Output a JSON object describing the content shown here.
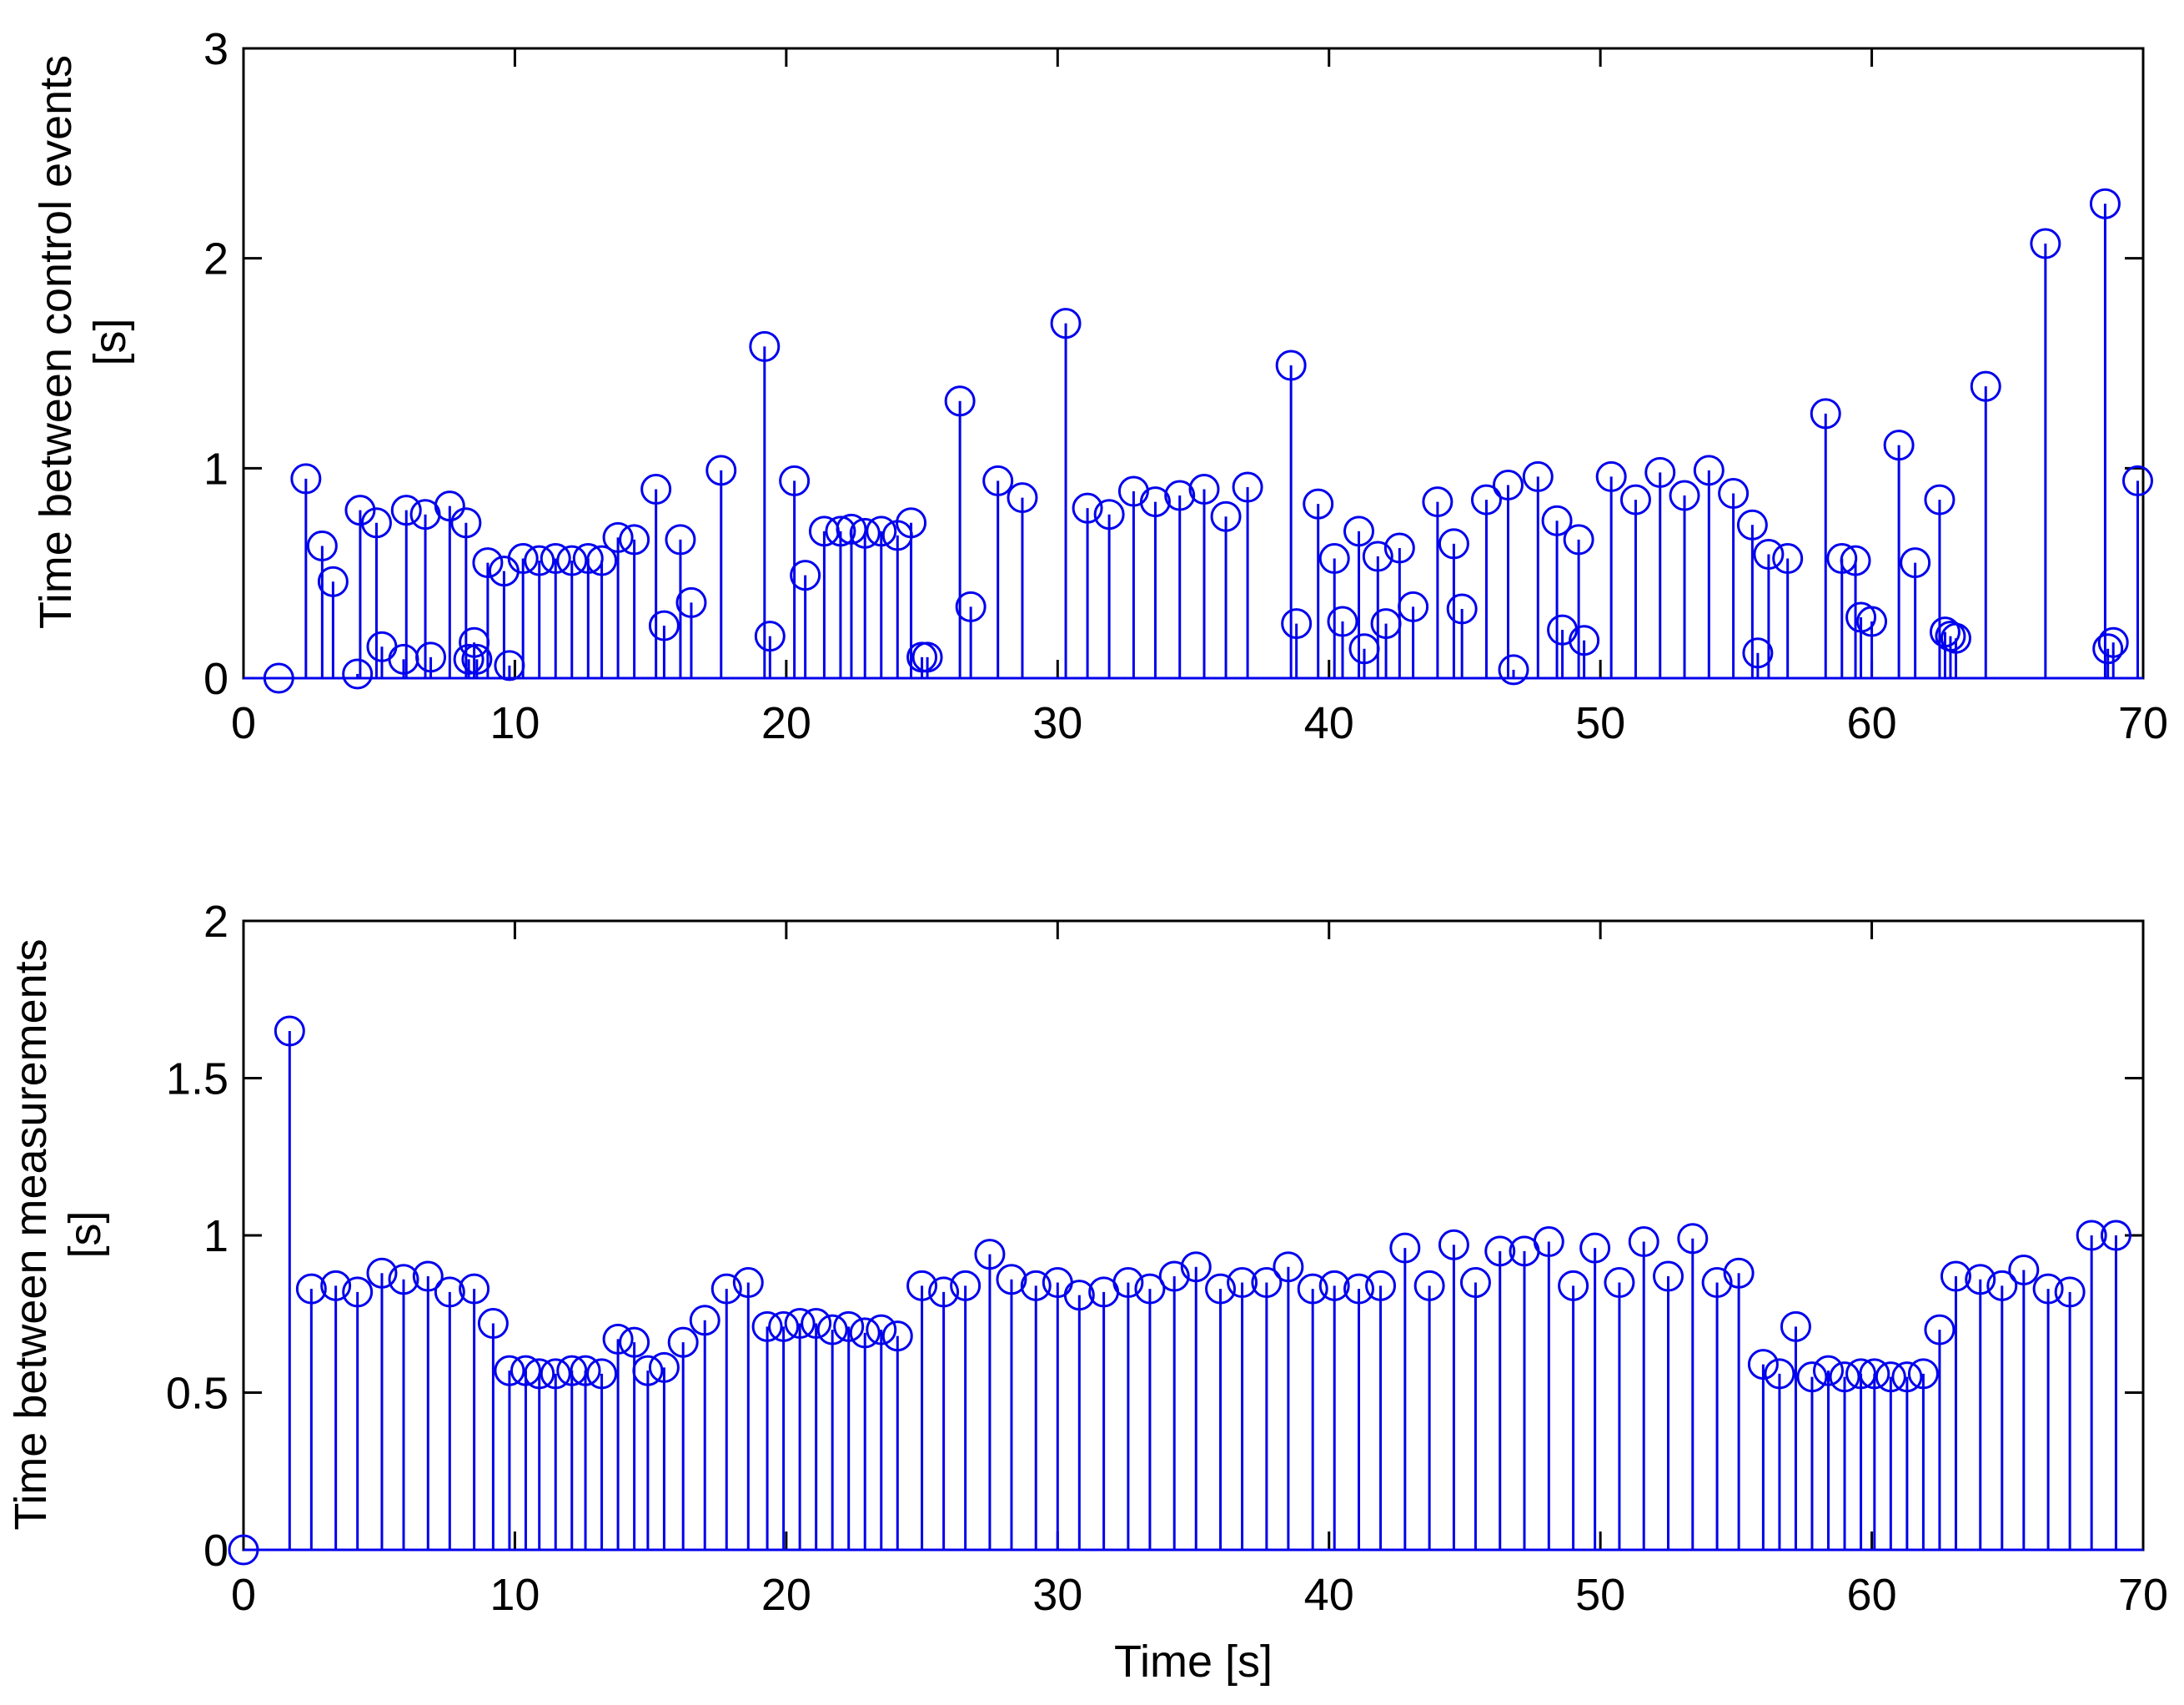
{
  "chart_data": [
    {
      "type": "stem",
      "ylabel_line1": "Time between control events",
      "ylabel_line2": "[s]",
      "xlabel": "",
      "xlim": [
        0,
        70
      ],
      "ylim": [
        0,
        3
      ],
      "xticks": [
        0,
        10,
        20,
        30,
        40,
        50,
        60,
        70
      ],
      "yticks": [
        0,
        1,
        2,
        3
      ],
      "xtick_labels": [
        "0",
        "10",
        "20",
        "30",
        "40",
        "50",
        "60",
        "70"
      ],
      "ytick_labels": [
        "0",
        "1",
        "2",
        "3"
      ],
      "color": "#0000ee",
      "x": [
        1.3,
        2.3,
        2.9,
        3.3,
        4.2,
        4.3,
        4.9,
        5.1,
        5.9,
        6.0,
        6.7,
        6.9,
        7.6,
        8.2,
        8.3,
        8.5,
        8.6,
        9.0,
        9.6,
        9.8,
        10.3,
        10.9,
        11.5,
        12.1,
        12.7,
        13.2,
        13.8,
        14.4,
        15.2,
        15.5,
        16.1,
        16.5,
        17.6,
        19.2,
        19.4,
        20.3,
        20.7,
        21.4,
        22.0,
        22.4,
        22.9,
        23.5,
        24.1,
        24.6,
        25.0,
        25.2,
        26.4,
        26.8,
        27.8,
        28.7,
        30.3,
        31.1,
        31.9,
        32.8,
        33.6,
        34.5,
        35.4,
        36.2,
        37.0,
        38.6,
        38.8,
        39.6,
        40.2,
        40.5,
        41.1,
        41.3,
        41.8,
        42.1,
        42.6,
        43.1,
        44.0,
        44.6,
        44.9,
        45.8,
        46.6,
        46.8,
        47.7,
        48.4,
        48.6,
        49.2,
        49.4,
        50.4,
        51.3,
        52.2,
        53.1,
        54.0,
        54.9,
        55.6,
        55.8,
        56.2,
        56.9,
        58.3,
        58.9,
        59.4,
        59.6,
        60.0,
        61.0,
        61.6,
        62.5,
        62.7,
        62.9,
        63.1,
        64.2,
        66.4,
        68.6,
        68.7,
        68.9,
        69.8
      ],
      "values": [
        0.0,
        0.95,
        0.63,
        0.46,
        0.02,
        0.8,
        0.74,
        0.15,
        0.09,
        0.8,
        0.78,
        0.1,
        0.82,
        0.74,
        0.09,
        0.17,
        0.09,
        0.55,
        0.51,
        0.06,
        0.57,
        0.56,
        0.57,
        0.56,
        0.57,
        0.56,
        0.67,
        0.66,
        0.9,
        0.25,
        0.66,
        0.36,
        0.99,
        1.58,
        0.2,
        0.94,
        0.49,
        0.7,
        0.7,
        0.71,
        0.69,
        0.7,
        0.68,
        0.74,
        0.1,
        0.1,
        1.32,
        0.34,
        0.94,
        0.86,
        1.69,
        0.81,
        0.78,
        0.89,
        0.84,
        0.87,
        0.9,
        0.77,
        0.91,
        1.49,
        0.26,
        0.83,
        0.57,
        0.27,
        0.7,
        0.14,
        0.58,
        0.26,
        0.62,
        0.34,
        0.84,
        0.64,
        0.33,
        0.85,
        0.92,
        0.04,
        0.96,
        0.75,
        0.23,
        0.66,
        0.18,
        0.96,
        0.85,
        0.98,
        0.87,
        0.99,
        0.88,
        0.73,
        0.12,
        0.59,
        0.57,
        1.26,
        0.57,
        0.56,
        0.29,
        0.27,
        1.11,
        0.55,
        0.85,
        0.22,
        0.2,
        0.19,
        1.39,
        2.07,
        2.26,
        0.14,
        0.17,
        0.94
      ]
    },
    {
      "type": "stem",
      "ylabel_line1": "Time between measurements",
      "ylabel_line2": "[s]",
      "xlabel": "Time [s]",
      "xlim": [
        0,
        70
      ],
      "ylim": [
        0,
        2
      ],
      "xticks": [
        0,
        10,
        20,
        30,
        40,
        50,
        60,
        70
      ],
      "yticks": [
        0,
        0.5,
        1,
        1.5,
        2
      ],
      "xtick_labels": [
        "0",
        "10",
        "20",
        "30",
        "40",
        "50",
        "60",
        "70"
      ],
      "ytick_labels": [
        "0",
        "0.5",
        "1",
        "1.5",
        "2"
      ],
      "color": "#0000ee",
      "x": [
        0.0,
        1.7,
        2.5,
        3.4,
        4.2,
        5.1,
        5.9,
        6.8,
        7.6,
        8.5,
        9.2,
        9.8,
        10.4,
        10.9,
        11.5,
        12.1,
        12.6,
        13.2,
        13.8,
        14.4,
        14.9,
        15.5,
        16.2,
        17.0,
        17.8,
        18.6,
        19.3,
        19.9,
        20.5,
        21.1,
        21.7,
        22.3,
        22.9,
        23.5,
        24.1,
        25.0,
        25.8,
        26.6,
        27.5,
        28.3,
        29.2,
        30.0,
        30.8,
        31.7,
        32.6,
        33.4,
        34.3,
        35.1,
        36.0,
        36.8,
        37.7,
        38.5,
        39.4,
        40.2,
        41.1,
        41.9,
        42.8,
        43.7,
        44.6,
        45.4,
        46.3,
        47.2,
        48.1,
        49.0,
        49.8,
        50.7,
        51.6,
        52.5,
        53.4,
        54.3,
        55.1,
        56.0,
        56.6,
        57.2,
        57.8,
        58.4,
        59.0,
        59.6,
        60.1,
        60.7,
        61.3,
        61.9,
        62.5,
        63.1,
        64.0,
        64.8,
        65.6,
        66.5,
        67.3,
        68.1,
        69.0
      ],
      "values": [
        0.0,
        1.65,
        0.83,
        0.84,
        0.82,
        0.88,
        0.86,
        0.87,
        0.82,
        0.83,
        0.72,
        0.57,
        0.57,
        0.56,
        0.56,
        0.57,
        0.57,
        0.56,
        0.67,
        0.66,
        0.57,
        0.58,
        0.66,
        0.73,
        0.83,
        0.85,
        0.71,
        0.71,
        0.72,
        0.72,
        0.7,
        0.71,
        0.69,
        0.7,
        0.68,
        0.84,
        0.82,
        0.84,
        0.94,
        0.86,
        0.84,
        0.85,
        0.81,
        0.82,
        0.85,
        0.83,
        0.87,
        0.9,
        0.83,
        0.85,
        0.85,
        0.9,
        0.83,
        0.84,
        0.83,
        0.84,
        0.96,
        0.84,
        0.97,
        0.85,
        0.95,
        0.95,
        0.98,
        0.84,
        0.96,
        0.85,
        0.98,
        0.87,
        0.99,
        0.85,
        0.88,
        0.59,
        0.56,
        0.71,
        0.55,
        0.57,
        0.55,
        0.56,
        0.56,
        0.55,
        0.55,
        0.56,
        0.7,
        0.87,
        0.86,
        0.84,
        0.89,
        0.83,
        0.82,
        1.0,
        1.0
      ]
    }
  ]
}
